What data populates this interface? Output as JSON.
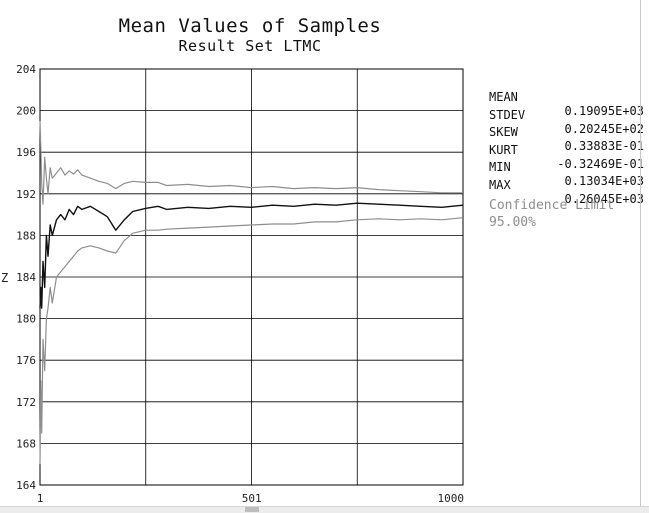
{
  "chart_data": {
    "type": "line",
    "title": "Mean Values of Samples",
    "subtitle": "Result Set LTMC",
    "ylabel": "Z",
    "xlabel": "",
    "xlim": [
      1,
      1000
    ],
    "ylim": [
      164,
      204
    ],
    "x_ticks": [
      "1",
      "501",
      "1000"
    ],
    "y_ticks": [
      "204",
      "200",
      "196",
      "192",
      "188",
      "184",
      "180",
      "176",
      "172",
      "168",
      "164"
    ],
    "grid": true,
    "series": [
      {
        "role": "mean",
        "color": "#111111",
        "x": [
          1,
          3,
          5,
          8,
          12,
          16,
          20,
          25,
          30,
          40,
          50,
          60,
          70,
          80,
          90,
          100,
          120,
          140,
          160,
          180,
          200,
          220,
          250,
          280,
          300,
          350,
          400,
          450,
          500,
          550,
          600,
          650,
          700,
          750,
          800,
          850,
          900,
          950,
          1000
        ],
        "values": [
          181,
          183,
          181,
          185.5,
          183,
          188,
          186,
          189,
          188,
          189.5,
          190,
          189.5,
          190.5,
          190,
          190.8,
          190.5,
          190.8,
          190.3,
          189.8,
          188.5,
          189.5,
          190.3,
          190.6,
          190.8,
          190.5,
          190.7,
          190.6,
          190.8,
          190.7,
          190.9,
          190.8,
          191,
          190.9,
          191.1,
          191,
          190.9,
          190.8,
          190.7,
          190.9
        ]
      },
      {
        "role": "upper-confidence-limit",
        "color": "#8e8e8e",
        "x": [
          1,
          3,
          5,
          8,
          12,
          16,
          20,
          25,
          30,
          40,
          50,
          60,
          70,
          80,
          90,
          100,
          120,
          140,
          160,
          180,
          200,
          220,
          250,
          280,
          300,
          350,
          400,
          450,
          500,
          550,
          600,
          650,
          700,
          750,
          800,
          850,
          900,
          950,
          1000
        ],
        "values": [
          199,
          196.5,
          193,
          191,
          195.5,
          193.5,
          192,
          194.5,
          193.5,
          194,
          194.5,
          193.8,
          194.2,
          193.9,
          194.3,
          193.8,
          193.5,
          193.2,
          193,
          192.5,
          193,
          193.2,
          193.1,
          193.1,
          192.8,
          192.9,
          192.7,
          192.8,
          192.6,
          192.7,
          192.5,
          192.6,
          192.5,
          192.6,
          192.4,
          192.3,
          192.2,
          192.1,
          192.1
        ]
      },
      {
        "role": "lower-confidence-limit",
        "color": "#8e8e8e",
        "x": [
          1,
          3,
          5,
          8,
          12,
          16,
          20,
          25,
          30,
          40,
          50,
          60,
          70,
          80,
          90,
          100,
          120,
          140,
          160,
          180,
          200,
          220,
          250,
          280,
          300,
          350,
          400,
          450,
          500,
          550,
          600,
          650,
          700,
          750,
          800,
          850,
          900,
          950,
          1000
        ],
        "values": [
          166,
          174,
          169,
          178,
          175,
          180,
          181,
          183,
          181.5,
          184,
          184.5,
          185,
          185.5,
          186,
          186.5,
          186.8,
          187,
          186.8,
          186.5,
          186.3,
          187.5,
          188.2,
          188.5,
          188.5,
          188.6,
          188.7,
          188.8,
          188.9,
          189,
          189.1,
          189.1,
          189.3,
          189.3,
          189.5,
          189.6,
          189.5,
          189.6,
          189.5,
          189.7
        ]
      }
    ]
  },
  "stats": [
    {
      "name": "MEAN",
      "value": " 0.19095E+03"
    },
    {
      "name": "STDEV",
      "value": " 0.20245E+02"
    },
    {
      "name": "SKEW",
      "value": " 0.33883E-01"
    },
    {
      "name": "KURT",
      "value": "-0.32469E-01"
    },
    {
      "name": "MIN",
      "value": " 0.13034E+03"
    },
    {
      "name": "MAX",
      "value": " 0.26045E+03"
    }
  ],
  "confidence": {
    "label": "Confidence Limit",
    "value": "95.00%"
  }
}
